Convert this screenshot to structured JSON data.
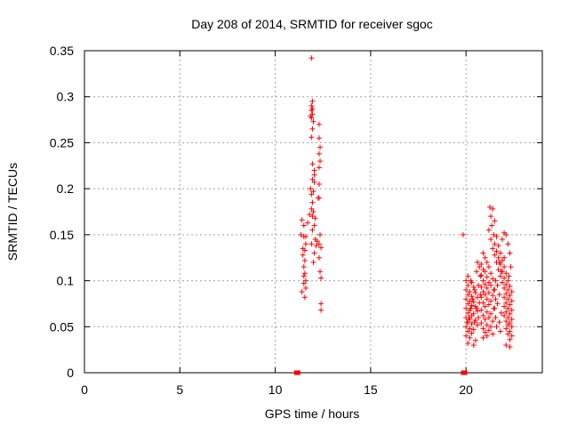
{
  "chart_data": {
    "type": "scatter",
    "title": "Day 208 of 2014, SRMTID for receiver sgoc",
    "xlabel": "GPS time / hours",
    "ylabel": "SRMTID / TECUs",
    "xlim": [
      0,
      24
    ],
    "ylim": [
      0,
      0.35
    ],
    "xticks": [
      0,
      5,
      10,
      15,
      20
    ],
    "xtick_labels": [
      "0",
      "5",
      "10",
      "15",
      "20"
    ],
    "yticks": [
      0,
      0.05,
      0.1,
      0.15,
      0.2,
      0.25,
      0.3,
      0.35
    ],
    "ytick_labels": [
      "0",
      "0.05",
      "0.1",
      "0.15",
      "0.2",
      "0.25",
      "0.3",
      "0.35"
    ],
    "grid": true,
    "marker": "+",
    "color": "#ff0000",
    "series": [
      {
        "name": "SRMTID",
        "points": [
          [
            11.9,
            0.342
          ],
          [
            11.95,
            0.295
          ],
          [
            11.9,
            0.29
          ],
          [
            11.95,
            0.287
          ],
          [
            11.9,
            0.285
          ],
          [
            11.95,
            0.281
          ],
          [
            11.85,
            0.279
          ],
          [
            11.9,
            0.277
          ],
          [
            12.0,
            0.273
          ],
          [
            11.95,
            0.265
          ],
          [
            12.3,
            0.27
          ],
          [
            11.9,
            0.256
          ],
          [
            12.3,
            0.255
          ],
          [
            12.35,
            0.245
          ],
          [
            12.3,
            0.238
          ],
          [
            12.35,
            0.23
          ],
          [
            11.95,
            0.227
          ],
          [
            12.3,
            0.223
          ],
          [
            12.05,
            0.22
          ],
          [
            12.05,
            0.215
          ],
          [
            11.95,
            0.21
          ],
          [
            12.05,
            0.207
          ],
          [
            12.3,
            0.205
          ],
          [
            11.85,
            0.2
          ],
          [
            12.0,
            0.197
          ],
          [
            11.9,
            0.194
          ],
          [
            12.3,
            0.19
          ],
          [
            11.95,
            0.185
          ],
          [
            12.25,
            0.19
          ],
          [
            11.9,
            0.178
          ],
          [
            12.0,
            0.175
          ],
          [
            11.8,
            0.172
          ],
          [
            11.95,
            0.17
          ],
          [
            12.1,
            0.168
          ],
          [
            11.4,
            0.166
          ],
          [
            11.7,
            0.163
          ],
          [
            11.5,
            0.16
          ],
          [
            12.05,
            0.16
          ],
          [
            11.95,
            0.155
          ],
          [
            12.35,
            0.15
          ],
          [
            11.35,
            0.15
          ],
          [
            11.6,
            0.148
          ],
          [
            11.5,
            0.148
          ],
          [
            12.1,
            0.145
          ],
          [
            12.2,
            0.143
          ],
          [
            12.3,
            0.14
          ],
          [
            11.6,
            0.14
          ],
          [
            11.9,
            0.14
          ],
          [
            12.15,
            0.138
          ],
          [
            12.4,
            0.136
          ],
          [
            11.45,
            0.135
          ],
          [
            11.55,
            0.133
          ],
          [
            12.05,
            0.13
          ],
          [
            11.45,
            0.128
          ],
          [
            12.3,
            0.125
          ],
          [
            11.55,
            0.122
          ],
          [
            12.0,
            0.12
          ],
          [
            11.5,
            0.115
          ],
          [
            12.35,
            0.11
          ],
          [
            11.55,
            0.108
          ],
          [
            11.5,
            0.105
          ],
          [
            12.4,
            0.103
          ],
          [
            11.6,
            0.1
          ],
          [
            11.5,
            0.097
          ],
          [
            11.6,
            0.092
          ],
          [
            11.4,
            0.088
          ],
          [
            11.55,
            0.082
          ],
          [
            12.4,
            0.075
          ],
          [
            12.4,
            0.068
          ],
          [
            11.1,
            0.0
          ],
          [
            11.2,
            0.0
          ],
          [
            19.85,
            0.15
          ],
          [
            19.85,
            0.0
          ],
          [
            19.95,
            0.0
          ],
          [
            20.1,
            0.105
          ],
          [
            20.0,
            0.1
          ],
          [
            20.3,
            0.098
          ],
          [
            20.1,
            0.095
          ],
          [
            20.4,
            0.093
          ],
          [
            20.0,
            0.09
          ],
          [
            20.2,
            0.088
          ],
          [
            20.5,
            0.087
          ],
          [
            20.1,
            0.085
          ],
          [
            20.3,
            0.083
          ],
          [
            20.6,
            0.082
          ],
          [
            20.0,
            0.08
          ],
          [
            20.2,
            0.078
          ],
          [
            20.4,
            0.077
          ],
          [
            20.7,
            0.076
          ],
          [
            20.1,
            0.075
          ],
          [
            20.3,
            0.073
          ],
          [
            20.5,
            0.072
          ],
          [
            20.0,
            0.07
          ],
          [
            20.2,
            0.068
          ],
          [
            20.6,
            0.067
          ],
          [
            20.1,
            0.065
          ],
          [
            20.4,
            0.064
          ],
          [
            20.3,
            0.062
          ],
          [
            20.0,
            0.06
          ],
          [
            20.2,
            0.058
          ],
          [
            20.5,
            0.057
          ],
          [
            20.1,
            0.055
          ],
          [
            20.3,
            0.053
          ],
          [
            20.6,
            0.052
          ],
          [
            20.0,
            0.05
          ],
          [
            20.2,
            0.048
          ],
          [
            20.4,
            0.047
          ],
          [
            20.1,
            0.045
          ],
          [
            20.3,
            0.043
          ],
          [
            20.0,
            0.04
          ],
          [
            20.2,
            0.038
          ],
          [
            20.5,
            0.035
          ],
          [
            20.1,
            0.032
          ],
          [
            20.4,
            0.03
          ],
          [
            20.9,
            0.13
          ],
          [
            21.0,
            0.125
          ],
          [
            21.1,
            0.12
          ],
          [
            20.8,
            0.118
          ],
          [
            21.2,
            0.115
          ],
          [
            20.9,
            0.112
          ],
          [
            21.0,
            0.11
          ],
          [
            21.3,
            0.108
          ],
          [
            20.8,
            0.106
          ],
          [
            21.1,
            0.104
          ],
          [
            21.4,
            0.102
          ],
          [
            20.9,
            0.1
          ],
          [
            21.2,
            0.098
          ],
          [
            21.0,
            0.096
          ],
          [
            21.3,
            0.095
          ],
          [
            20.8,
            0.093
          ],
          [
            21.1,
            0.092
          ],
          [
            21.5,
            0.09
          ],
          [
            20.9,
            0.088
          ],
          [
            21.2,
            0.087
          ],
          [
            21.0,
            0.085
          ],
          [
            21.4,
            0.084
          ],
          [
            20.8,
            0.082
          ],
          [
            21.1,
            0.08
          ],
          [
            21.3,
            0.078
          ],
          [
            20.9,
            0.076
          ],
          [
            21.2,
            0.074
          ],
          [
            21.0,
            0.072
          ],
          [
            21.5,
            0.07
          ],
          [
            20.8,
            0.068
          ],
          [
            21.1,
            0.066
          ],
          [
            21.3,
            0.064
          ],
          [
            20.9,
            0.062
          ],
          [
            21.2,
            0.06
          ],
          [
            21.0,
            0.058
          ],
          [
            21.4,
            0.056
          ],
          [
            20.8,
            0.054
          ],
          [
            21.1,
            0.052
          ],
          [
            21.3,
            0.05
          ],
          [
            20.9,
            0.048
          ],
          [
            21.2,
            0.046
          ],
          [
            21.0,
            0.044
          ],
          [
            21.4,
            0.042
          ],
          [
            21.1,
            0.04
          ],
          [
            20.9,
            0.038
          ],
          [
            21.25,
            0.18
          ],
          [
            21.4,
            0.178
          ],
          [
            21.3,
            0.17
          ],
          [
            21.5,
            0.165
          ],
          [
            21.35,
            0.16
          ],
          [
            21.2,
            0.155
          ],
          [
            21.45,
            0.15
          ],
          [
            21.6,
            0.148
          ],
          [
            21.3,
            0.145
          ],
          [
            21.5,
            0.14
          ],
          [
            21.7,
            0.138
          ],
          [
            21.4,
            0.135
          ],
          [
            21.6,
            0.132
          ],
          [
            21.8,
            0.13
          ],
          [
            21.5,
            0.128
          ],
          [
            21.7,
            0.125
          ],
          [
            21.9,
            0.122
          ],
          [
            21.6,
            0.12
          ],
          [
            21.8,
            0.118
          ],
          [
            22.0,
            0.115
          ],
          [
            21.7,
            0.112
          ],
          [
            21.9,
            0.11
          ],
          [
            22.1,
            0.108
          ],
          [
            21.8,
            0.105
          ],
          [
            22.0,
            0.103
          ],
          [
            22.2,
            0.1
          ],
          [
            21.9,
            0.098
          ],
          [
            22.1,
            0.096
          ],
          [
            22.3,
            0.094
          ],
          [
            22.0,
            0.092
          ],
          [
            22.2,
            0.09
          ],
          [
            22.4,
            0.088
          ],
          [
            22.1,
            0.086
          ],
          [
            22.3,
            0.084
          ],
          [
            22.0,
            0.082
          ],
          [
            22.2,
            0.08
          ],
          [
            22.4,
            0.078
          ],
          [
            22.1,
            0.076
          ],
          [
            22.3,
            0.074
          ],
          [
            22.0,
            0.072
          ],
          [
            22.2,
            0.07
          ],
          [
            22.4,
            0.068
          ],
          [
            22.1,
            0.066
          ],
          [
            22.3,
            0.064
          ],
          [
            22.0,
            0.062
          ],
          [
            22.2,
            0.06
          ],
          [
            22.4,
            0.058
          ],
          [
            22.1,
            0.056
          ],
          [
            22.3,
            0.054
          ],
          [
            22.2,
            0.052
          ],
          [
            22.4,
            0.05
          ],
          [
            22.1,
            0.048
          ],
          [
            22.3,
            0.045
          ],
          [
            22.2,
            0.042
          ],
          [
            22.4,
            0.04
          ],
          [
            22.3,
            0.036
          ],
          [
            22.1,
            0.03
          ],
          [
            22.3,
            0.028
          ],
          [
            22.0,
            0.152
          ],
          [
            22.1,
            0.15
          ],
          [
            21.9,
            0.145
          ],
          [
            22.2,
            0.14
          ],
          [
            22.3,
            0.13
          ],
          [
            22.0,
            0.125
          ],
          [
            21.75,
            0.12
          ],
          [
            22.35,
            0.115
          ],
          [
            21.85,
            0.11
          ],
          [
            22.25,
            0.105
          ],
          [
            21.55,
            0.1
          ],
          [
            21.65,
            0.095
          ],
          [
            21.45,
            0.09
          ],
          [
            21.75,
            0.085
          ],
          [
            21.55,
            0.08
          ],
          [
            21.65,
            0.075
          ],
          [
            21.45,
            0.07
          ],
          [
            21.85,
            0.065
          ],
          [
            21.55,
            0.06
          ],
          [
            21.75,
            0.055
          ],
          [
            21.6,
            0.05
          ],
          [
            21.8,
            0.045
          ],
          [
            20.6,
            0.12
          ],
          [
            20.7,
            0.115
          ],
          [
            20.55,
            0.11
          ],
          [
            20.75,
            0.105
          ],
          [
            20.65,
            0.095
          ],
          [
            20.45,
            0.09
          ],
          [
            20.75,
            0.085
          ],
          [
            20.55,
            0.07
          ],
          [
            20.65,
            0.06
          ],
          [
            20.45,
            0.055
          ],
          [
            20.35,
            0.08
          ],
          [
            20.25,
            0.07
          ],
          [
            20.15,
            0.06
          ],
          [
            20.05,
            0.055
          ],
          [
            20.25,
            0.1
          ]
        ]
      }
    ]
  }
}
